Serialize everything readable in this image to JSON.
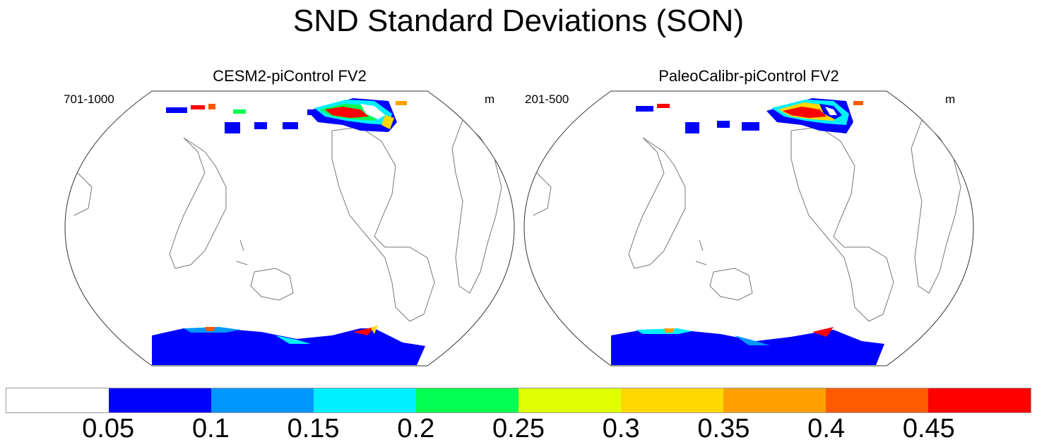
{
  "figure": {
    "title": "SND Standard Deviations (SON)"
  },
  "panels": [
    {
      "title": "CESM2-piControl FV2",
      "left_label": "701-1000",
      "right_label": "m"
    },
    {
      "title": "PaleoCalibr-piControl FV2",
      "left_label": "201-500",
      "right_label": "m"
    }
  ],
  "colorbar": {
    "ticks": [
      "0.05",
      "0.1",
      "0.15",
      "0.2",
      "0.25",
      "0.3",
      "0.35",
      "0.4",
      "0.45"
    ],
    "colors": [
      "#ffffff",
      "#0000ff",
      "#0096ff",
      "#00f0ff",
      "#00ff50",
      "#e0ff00",
      "#ffd800",
      "#ffa000",
      "#ff5a00",
      "#ff0000"
    ]
  }
}
